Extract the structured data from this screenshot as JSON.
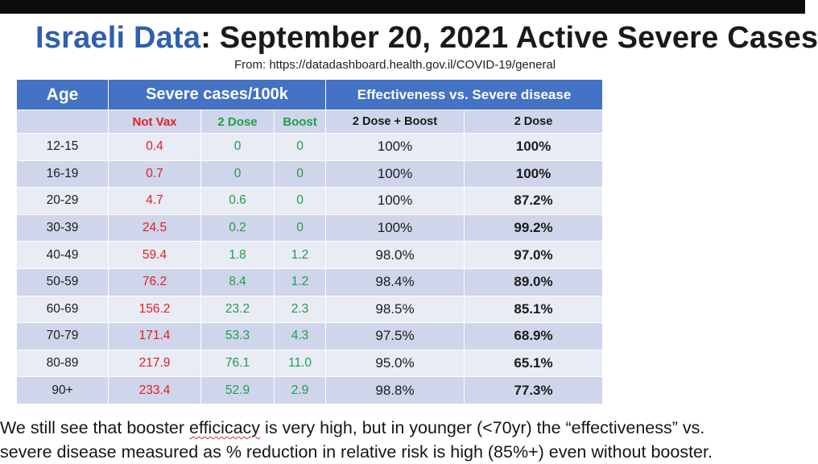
{
  "title": {
    "accent": "Israeli Data",
    "rest": ": September 20, 2021 Active Severe Cases"
  },
  "source": "From: https://datadashboard.health.gov.il/COVID-19/general",
  "table": {
    "header": {
      "age": "Age",
      "severe": "Severe cases/100k",
      "effectiveness": "Effectiveness vs. Severe disease"
    },
    "subheader": {
      "not_vax": "Not Vax",
      "two_dose": "2 Dose",
      "boost": "Boost",
      "dose_boost": "2 Dose + Boost",
      "two_dose_eff": "2 Dose"
    },
    "rows": [
      {
        "age": "12-15",
        "not_vax": "0.4",
        "two_dose": "0",
        "boost": "0",
        "eff_boost": "100%",
        "eff_two": "100%"
      },
      {
        "age": "16-19",
        "not_vax": "0.7",
        "two_dose": "0",
        "boost": "0",
        "eff_boost": "100%",
        "eff_two": "100%"
      },
      {
        "age": "20-29",
        "not_vax": "4.7",
        "two_dose": "0.6",
        "boost": "0",
        "eff_boost": "100%",
        "eff_two": "87.2%"
      },
      {
        "age": "30-39",
        "not_vax": "24.5",
        "two_dose": "0.2",
        "boost": "0",
        "eff_boost": "100%",
        "eff_two": "99.2%"
      },
      {
        "age": "40-49",
        "not_vax": "59.4",
        "two_dose": "1.8",
        "boost": "1.2",
        "eff_boost": "98.0%",
        "eff_two": "97.0%"
      },
      {
        "age": "50-59",
        "not_vax": "76.2",
        "two_dose": "8.4",
        "boost": "1.2",
        "eff_boost": "98.4%",
        "eff_two": "89.0%"
      },
      {
        "age": "60-69",
        "not_vax": "156.2",
        "two_dose": "23.2",
        "boost": "2.3",
        "eff_boost": "98.5%",
        "eff_two": "85.1%"
      },
      {
        "age": "70-79",
        "not_vax": "171.4",
        "two_dose": "53.3",
        "boost": "4.3",
        "eff_boost": "97.5%",
        "eff_two": "68.9%"
      },
      {
        "age": "80-89",
        "not_vax": "217.9",
        "two_dose": "76.1",
        "boost": "11.0",
        "eff_boost": "95.0%",
        "eff_two": "65.1%"
      },
      {
        "age": "90+",
        "not_vax": "233.4",
        "two_dose": "52.9",
        "boost": "2.9",
        "eff_boost": "98.8%",
        "eff_two": "77.3%"
      }
    ]
  },
  "caption": {
    "line1_a": "We still see that booster ",
    "line1_underlined": "efficicacy",
    "line1_b": " is very high, but in younger (<70yr) the “effectiveness” vs.",
    "line2": "severe disease measured as % reduction in relative risk is high (85%+) even without booster."
  },
  "colors": {
    "title_accent": "#2f5fb0",
    "header_fill": "#4472c4",
    "band_dark": "#cfd5ea",
    "band_light": "#e9ebf5",
    "not_vax": "#e02020",
    "vax": "#1f9e4a"
  }
}
